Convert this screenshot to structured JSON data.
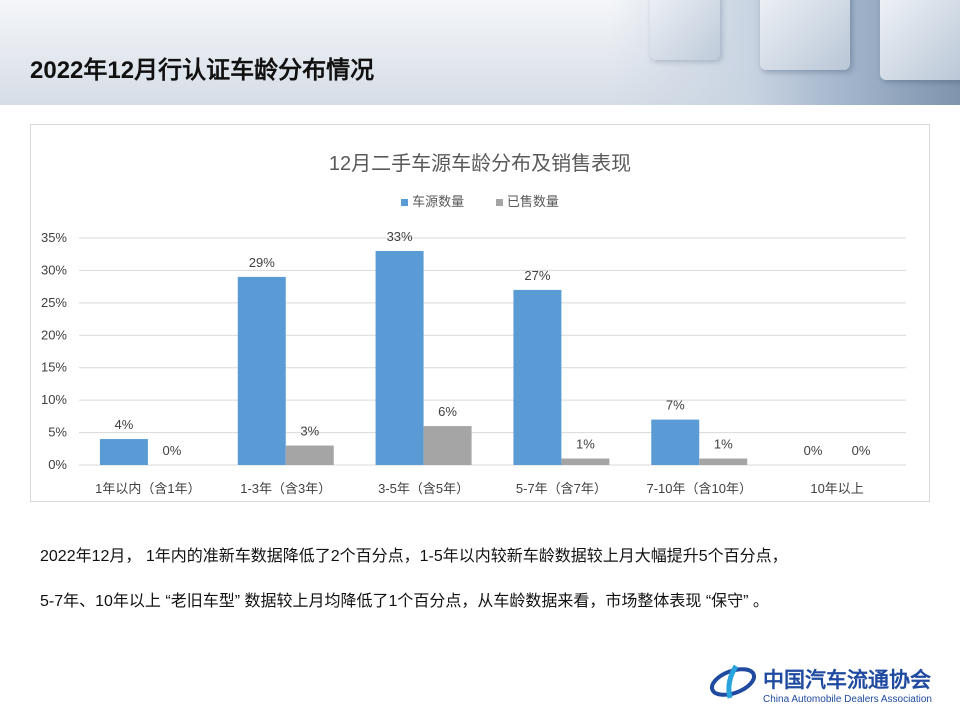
{
  "slide_title": "2022年12月行认证车龄分布情况",
  "paragraph_lines": [
    "2022年12月， 1年内的准新车数据降低了2个百分点，1-5年以内较新车龄数据较上月大幅提升5个百分点，",
    "5-7年、10年以上 “老旧车型” 数据较上月均降低了1个百分点，从车龄数据来看，市场整体表现 “保守” 。"
  ],
  "logo": {
    "cn": "中国汽车流通协会",
    "en": "China Automobile Dealers Association",
    "mark": "CADA"
  },
  "chart_data": {
    "type": "bar",
    "title": "12月二手车源车龄分布及销售表现",
    "categories": [
      "1年以内（含1年）",
      "1-3年（含3年）",
      "3-5年（含5年）",
      "5-7年（含7年）",
      "7-10年（含10年）",
      "10年以上"
    ],
    "series": [
      {
        "name": "车源数量",
        "color": "#5b9bd5",
        "values": [
          4,
          29,
          33,
          27,
          7,
          0
        ],
        "labels": [
          "4%",
          "29%",
          "33%",
          "27%",
          "7%",
          "0%"
        ]
      },
      {
        "name": "已售数量",
        "color": "#a5a5a5",
        "values": [
          0,
          3,
          6,
          1,
          1,
          0
        ],
        "labels": [
          "0%",
          "3%",
          "6%",
          "1%",
          "1%",
          "0%"
        ]
      }
    ],
    "yticks": [
      "0%",
      "5%",
      "10%",
      "15%",
      "20%",
      "25%",
      "30%",
      "35%"
    ],
    "ylim": [
      0,
      35
    ],
    "legend": "top",
    "grid": true,
    "xlabel": "",
    "ylabel": ""
  }
}
